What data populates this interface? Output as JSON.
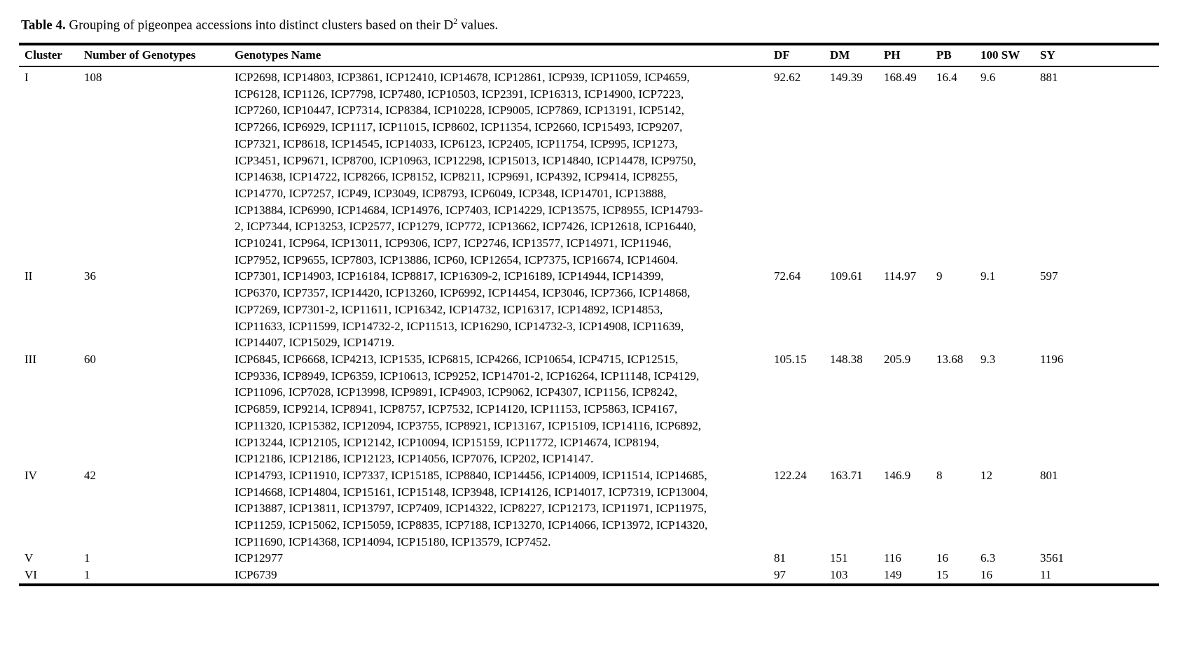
{
  "title": {
    "label": "Table 4.",
    "body": " Grouping of pigeonpea accessions into distinct clusters based on their D",
    "sup": "2",
    "tail": " values."
  },
  "table": {
    "columns": [
      "Cluster",
      "Number of Genotypes",
      "Genotypes Name",
      "DF",
      "DM",
      "PH",
      "PB",
      "100 SW",
      "SY"
    ],
    "rows": [
      {
        "cluster": "I",
        "count": "108",
        "genotypes": "ICP2698, ICP14803, ICP3861, ICP12410, ICP14678, ICP12861, ICP939, ICP11059, ICP4659,\nICP6128, ICP1126, ICP7798, ICP7480, ICP10503, ICP2391, ICP16313, ICP14900, ICP7223,\nICP7260, ICP10447, ICP7314, ICP8384, ICP10228, ICP9005, ICP7869, ICP13191, ICP5142,\nICP7266, ICP6929, ICP1117, ICP11015, ICP8602, ICP11354, ICP2660, ICP15493, ICP9207,\nICP7321, ICP8618, ICP14545, ICP14033, ICP6123, ICP2405, ICP11754, ICP995, ICP1273,\nICP3451, ICP9671, ICP8700, ICP10963, ICP12298, ICP15013, ICP14840, ICP14478, ICP9750,\nICP14638, ICP14722, ICP8266, ICP8152, ICP8211, ICP9691, ICP4392, ICP9414, ICP8255,\nICP14770, ICP7257, ICP49, ICP3049, ICP8793, ICP6049, ICP348, ICP14701, ICP13888,\nICP13884, ICP6990, ICP14684, ICP14976, ICP7403, ICP14229, ICP13575, ICP8955, ICP14793-\n2, ICP7344, ICP13253, ICP2577, ICP1279, ICP772, ICP13662, ICP7426, ICP12618, ICP16440,\nICP10241, ICP964, ICP13011, ICP9306, ICP7, ICP2746, ICP13577, ICP14971, ICP11946,\nICP7952, ICP9655, ICP7803, ICP13886, ICP60, ICP12654, ICP7375, ICP16674, ICP14604.",
        "df": "92.62",
        "dm": "149.39",
        "ph": "168.49",
        "pb": "16.4",
        "sw100": "9.6",
        "sy": "881"
      },
      {
        "cluster": "II",
        "count": "36",
        "genotypes": "ICP7301, ICP14903, ICP16184, ICP8817, ICP16309-2, ICP16189, ICP14944, ICP14399,\nICP6370, ICP7357, ICP14420, ICP13260, ICP6992, ICP14454, ICP3046, ICP7366, ICP14868,\nICP7269, ICP7301-2, ICP11611, ICP16342, ICP14732, ICP16317, ICP14892, ICP14853,\nICP11633, ICP11599, ICP14732-2, ICP11513, ICP16290, ICP14732-3, ICP14908, ICP11639,\nICP14407, ICP15029, ICP14719.",
        "df": "72.64",
        "dm": "109.61",
        "ph": "114.97",
        "pb": "9",
        "sw100": "9.1",
        "sy": "597"
      },
      {
        "cluster": "III",
        "count": "60",
        "genotypes": "ICP6845, ICP6668, ICP4213, ICP1535, ICP6815, ICP4266, ICP10654, ICP4715, ICP12515,\nICP9336, ICP8949, ICP6359, ICP10613, ICP9252, ICP14701-2, ICP16264, ICP11148, ICP4129,\nICP11096, ICP7028, ICP13998, ICP9891, ICP4903, ICP9062, ICP4307, ICP1156, ICP8242,\nICP6859, ICP9214, ICP8941, ICP8757, ICP7532, ICP14120, ICP11153, ICP5863, ICP4167,\nICP11320, ICP15382, ICP12094, ICP3755, ICP8921, ICP13167, ICP15109, ICP14116, ICP6892,\nICP13244, ICP12105, ICP12142, ICP10094, ICP15159, ICP11772, ICP14674, ICP8194,\nICP12186, ICP12186, ICP12123, ICP14056, ICP7076, ICP202, ICP14147.",
        "df": "105.15",
        "dm": "148.38",
        "ph": "205.9",
        "pb": "13.68",
        "sw100": "9.3",
        "sy": "1196"
      },
      {
        "cluster": "IV",
        "count": "42",
        "genotypes": "ICP14793, ICP11910, ICP7337, ICP15185, ICP8840, ICP14456, ICP14009, ICP11514, ICP14685,\nICP14668, ICP14804, ICP15161, ICP15148, ICP3948, ICP14126, ICP14017, ICP7319, ICP13004,\nICP13887, ICP13811, ICP13797, ICP7409, ICP14322, ICP8227, ICP12173, ICP11971, ICP11975,\nICP11259, ICP15062, ICP15059, ICP8835, ICP7188, ICP13270, ICP14066, ICP13972, ICP14320,\nICP11690, ICP14368, ICP14094, ICP15180, ICP13579, ICP7452.",
        "df": "122.24",
        "dm": "163.71",
        "ph": "146.9",
        "pb": "8",
        "sw100": "12",
        "sy": "801"
      },
      {
        "cluster": "V",
        "count": "1",
        "genotypes": "ICP12977",
        "df": "81",
        "dm": "151",
        "ph": "116",
        "pb": "16",
        "sw100": "6.3",
        "sy": "3561"
      },
      {
        "cluster": "VI",
        "count": "1",
        "genotypes": "ICP6739",
        "df": "97",
        "dm": "103",
        "ph": "149",
        "pb": "15",
        "sw100": "16",
        "sy": "11"
      }
    ]
  }
}
